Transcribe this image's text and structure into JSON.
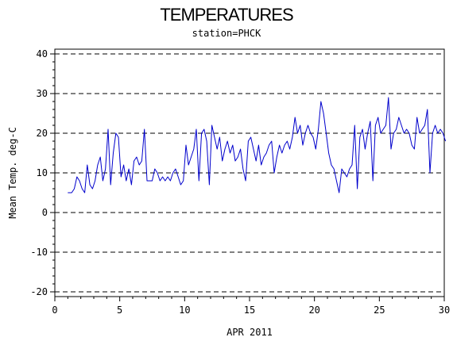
{
  "chart_data": {
    "type": "line",
    "title": "TEMPERATURES",
    "subtitle": "station=PHCK",
    "xlabel": "APR 2011",
    "ylabel": "Mean Temp. deg-C",
    "xlim": [
      0,
      30
    ],
    "ylim": [
      -20,
      40
    ],
    "xticks": [
      0,
      5,
      10,
      15,
      20,
      25,
      30
    ],
    "yticks": [
      -20,
      -10,
      0,
      10,
      20,
      30,
      40
    ],
    "grid": "horizontal dashed at y-ticks",
    "series": [
      {
        "color": "#0000cc",
        "x": [
          1.0,
          1.3,
          1.5,
          1.7,
          1.9,
          2.1,
          2.3,
          2.5,
          2.7,
          2.9,
          3.1,
          3.3,
          3.5,
          3.7,
          3.9,
          4.1,
          4.3,
          4.5,
          4.7,
          4.9,
          5.1,
          5.3,
          5.5,
          5.7,
          5.9,
          6.1,
          6.3,
          6.5,
          6.7,
          6.9,
          7.1,
          7.3,
          7.5,
          7.7,
          7.9,
          8.1,
          8.3,
          8.5,
          8.7,
          8.9,
          9.1,
          9.3,
          9.5,
          9.7,
          9.9,
          10.1,
          10.3,
          10.5,
          10.7,
          10.9,
          11.1,
          11.3,
          11.5,
          11.7,
          11.9,
          12.1,
          12.3,
          12.5,
          12.7,
          12.9,
          13.1,
          13.3,
          13.5,
          13.7,
          13.9,
          14.1,
          14.3,
          14.5,
          14.7,
          14.9,
          15.1,
          15.3,
          15.5,
          15.7,
          15.9,
          16.1,
          16.3,
          16.5,
          16.7,
          16.9,
          17.1,
          17.3,
          17.5,
          17.7,
          17.9,
          18.1,
          18.3,
          18.5,
          18.7,
          18.9,
          19.1,
          19.3,
          19.5,
          19.7,
          19.9,
          20.1,
          20.3,
          20.5,
          20.7,
          20.9,
          21.1,
          21.3,
          21.5,
          21.7,
          21.9,
          22.1,
          22.3,
          22.5,
          22.7,
          22.9,
          23.1,
          23.3,
          23.5,
          23.7,
          23.9,
          24.1,
          24.3,
          24.5,
          24.7,
          24.9,
          25.1,
          25.3,
          25.5,
          25.7,
          25.9,
          26.1,
          26.3,
          26.5,
          26.7,
          26.9,
          27.1,
          27.3,
          27.5,
          27.7,
          27.9,
          28.1,
          28.3,
          28.5,
          28.7,
          28.9,
          29.1,
          29.3,
          29.5,
          29.7,
          29.9,
          30.1
        ],
        "y": [
          5,
          5,
          6,
          9,
          8,
          6,
          5,
          12,
          7,
          6,
          8,
          12,
          14,
          8,
          11,
          21,
          7,
          15,
          20,
          19,
          9,
          12,
          8,
          11,
          7,
          13,
          14,
          12,
          13,
          21,
          8,
          8,
          8,
          11,
          10,
          8,
          9,
          8,
          9,
          8,
          10,
          11,
          9,
          7,
          8,
          17,
          12,
          14,
          16,
          21,
          8,
          20,
          21,
          18,
          7,
          22,
          19,
          16,
          19,
          13,
          16,
          18,
          15,
          17,
          13,
          14,
          16,
          11,
          8,
          18,
          19,
          16,
          13,
          17,
          12,
          14,
          15,
          17,
          18,
          10,
          14,
          17,
          15,
          17,
          18,
          16,
          19,
          24,
          20,
          22,
          17,
          20,
          22,
          20,
          19,
          16,
          21,
          28,
          25,
          20,
          15,
          12,
          11,
          8,
          5,
          11,
          10,
          9,
          11,
          12,
          22,
          6,
          19,
          21,
          16,
          20,
          23,
          8,
          22,
          24,
          20,
          21,
          22,
          29,
          16,
          20,
          21,
          24,
          22,
          20,
          21,
          20,
          17,
          16,
          24,
          20,
          21,
          22,
          26,
          10,
          20,
          22,
          20,
          21,
          20,
          18
        ]
      }
    ]
  }
}
